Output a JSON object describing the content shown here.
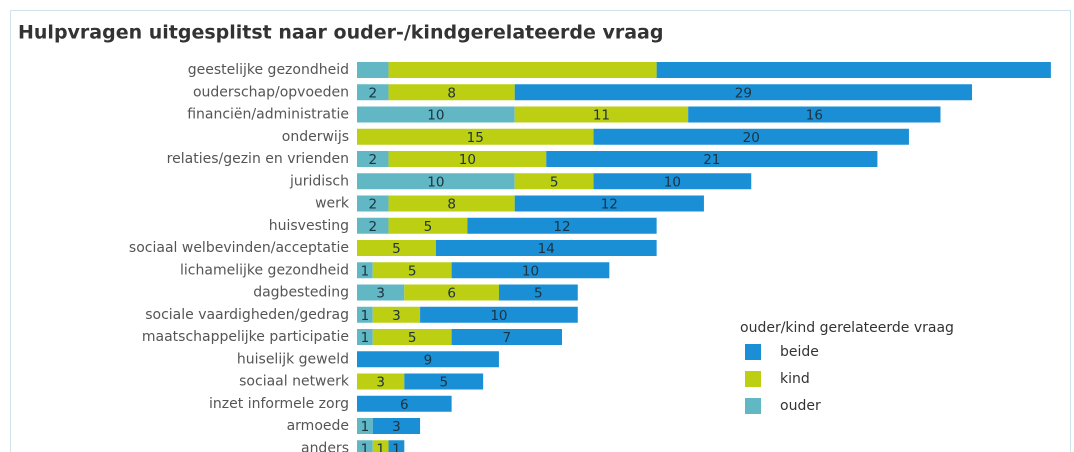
{
  "chart_data": {
    "type": "stacked-bar-horizontal",
    "title": "Hulpvragen uitgesplitst naar ouder-/kindgerelateerde vraag",
    "categories": [
      "geestelijke gezondheid",
      "ouderschap/opvoeden",
      "financiën/administratie",
      "onderwijs",
      "relaties/gezin en vrienden",
      "juridisch",
      "werk",
      "huisvesting",
      "sociaal welbevinden/acceptatie",
      "lichamelijke gezondheid",
      "dagbesteding",
      "sociale vaardigheden/gedrag",
      "maatschappelijke participatie",
      "huiselijk geweld",
      "sociaal netwerk",
      "inzet informele zorg",
      "armoede",
      "anders"
    ],
    "legend_title": "ouder/kind gerelateerde vraag",
    "series": [
      {
        "name": "beide",
        "color": "#1a8fd6",
        "values": [
          25,
          29,
          16,
          20,
          21,
          10,
          12,
          12,
          14,
          10,
          5,
          10,
          7,
          9,
          5,
          6,
          3,
          1
        ],
        "value_labels": [
          null,
          "29",
          "16",
          "20",
          "21",
          "10",
          "12",
          "12",
          "14",
          "10",
          "5",
          "10",
          "7",
          "9",
          "5",
          "6",
          "3",
          "1"
        ]
      },
      {
        "name": "kind",
        "color": "#bccf12",
        "values": [
          17,
          8,
          11,
          15,
          10,
          5,
          8,
          5,
          5,
          5,
          6,
          3,
          5,
          0,
          3,
          0,
          0,
          1
        ],
        "value_labels": [
          null,
          "8",
          "11",
          "15",
          "10",
          "5",
          "8",
          "5",
          "5",
          "5",
          "6",
          "3",
          "5",
          null,
          "3",
          null,
          null,
          "1"
        ]
      },
      {
        "name": "ouder",
        "color": "#62b7c4",
        "values": [
          2,
          2,
          10,
          0,
          2,
          10,
          2,
          2,
          0,
          1,
          3,
          1,
          1,
          0,
          0,
          0,
          1,
          1
        ],
        "value_labels": [
          null,
          "2",
          "10",
          null,
          "2",
          "10",
          "2",
          "2",
          null,
          "1",
          "3",
          "1",
          "1",
          null,
          null,
          null,
          "1",
          "1"
        ]
      }
    ]
  }
}
